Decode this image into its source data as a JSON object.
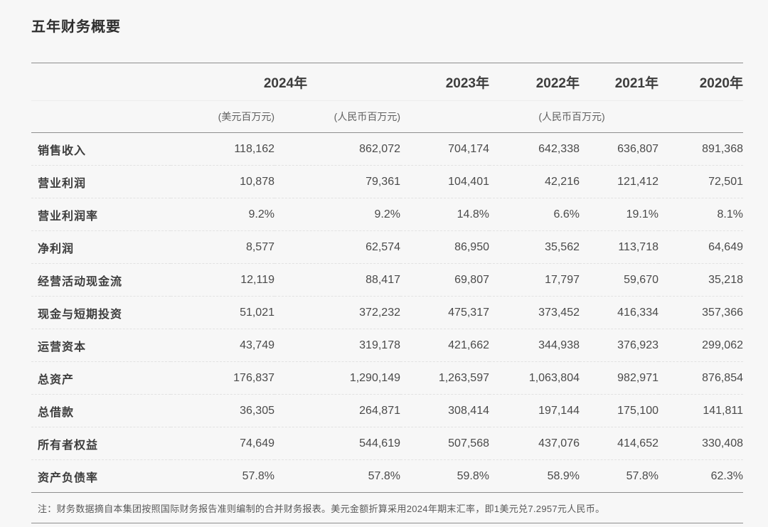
{
  "title": "五年财务概要",
  "table": {
    "year_headers": [
      "2024年",
      "2023年",
      "2022年",
      "2021年",
      "2020年"
    ],
    "unit_usd": "(美元百万元)",
    "unit_rmb_2024": "(人民币百万元)",
    "unit_rmb_prior": "(人民币百万元)",
    "rows": [
      {
        "label": "销售收入",
        "values": [
          "118,162",
          "862,072",
          "704,174",
          "642,338",
          "636,807",
          "891,368"
        ]
      },
      {
        "label": "营业利润",
        "values": [
          "10,878",
          "79,361",
          "104,401",
          "42,216",
          "121,412",
          "72,501"
        ]
      },
      {
        "label": "营业利润率",
        "values": [
          "9.2%",
          "9.2%",
          "14.8%",
          "6.6%",
          "19.1%",
          "8.1%"
        ]
      },
      {
        "label": "净利润",
        "values": [
          "8,577",
          "62,574",
          "86,950",
          "35,562",
          "113,718",
          "64,649"
        ]
      },
      {
        "label": "经营活动现金流",
        "values": [
          "12,119",
          "88,417",
          "69,807",
          "17,797",
          "59,670",
          "35,218"
        ]
      },
      {
        "label": "现金与短期投资",
        "values": [
          "51,021",
          "372,232",
          "475,317",
          "373,452",
          "416,334",
          "357,366"
        ]
      },
      {
        "label": "运营资本",
        "values": [
          "43,749",
          "319,178",
          "421,662",
          "344,938",
          "376,923",
          "299,062"
        ]
      },
      {
        "label": "总资产",
        "values": [
          "176,837",
          "1,290,149",
          "1,263,597",
          "1,063,804",
          "982,971",
          "876,854"
        ]
      },
      {
        "label": "总借款",
        "values": [
          "36,305",
          "264,871",
          "308,414",
          "197,144",
          "175,100",
          "141,811"
        ]
      },
      {
        "label": "所有者权益",
        "values": [
          "74,649",
          "544,619",
          "507,568",
          "437,076",
          "414,652",
          "330,408"
        ]
      },
      {
        "label": "资产负债率",
        "values": [
          "57.8%",
          "57.8%",
          "59.8%",
          "58.9%",
          "57.8%",
          "62.3%"
        ]
      }
    ]
  },
  "note": "注：财务数据摘自本集团按照国际财务报告准则编制的合并财务报表。美元金额折算采用2024年期末汇率，即1美元兑7.2957元人民币。"
}
